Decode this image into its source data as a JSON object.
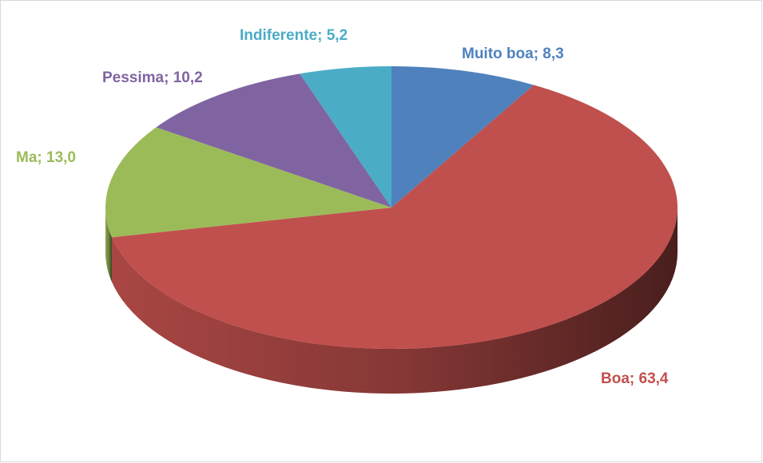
{
  "chart_data": {
    "type": "pie3d",
    "values": [
      8.3,
      63.4,
      13.0,
      10.2,
      5.2
    ],
    "value_labels": [
      "Muito boa;  8,3",
      "Boa;  63,4",
      "Ma;  13,0",
      "Pessima;  10,2",
      "Indiferente;  5,2"
    ],
    "colors": [
      "#4f81bd",
      "#c0504d",
      "#9bbb59",
      "#8064a2",
      "#4bacc6"
    ]
  }
}
